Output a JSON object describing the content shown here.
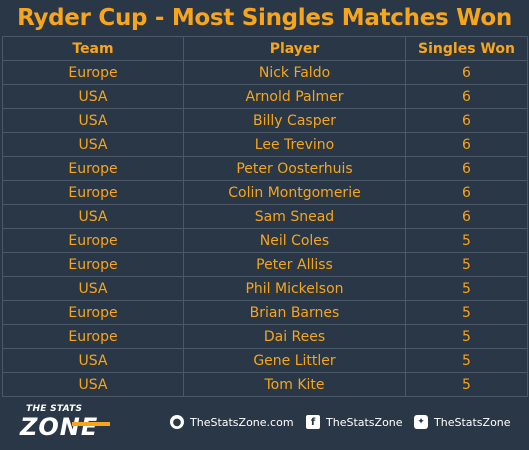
{
  "title": "Ryder Cup - Most Singles Matches Won",
  "table": {
    "columns": [
      "Team",
      "Player",
      "Singles Won"
    ],
    "rows": [
      [
        "Europe",
        "Nick Faldo",
        "6"
      ],
      [
        "USA",
        "Arnold Palmer",
        "6"
      ],
      [
        "USA",
        "Billy Casper",
        "6"
      ],
      [
        "USA",
        "Lee Trevino",
        "6"
      ],
      [
        "Europe",
        "Peter Oosterhuis",
        "6"
      ],
      [
        "Europe",
        "Colin Montgomerie",
        "6"
      ],
      [
        "USA",
        "Sam Snead",
        "6"
      ],
      [
        "Europe",
        "Neil Coles",
        "5"
      ],
      [
        "Europe",
        "Peter Alliss",
        "5"
      ],
      [
        "USA",
        "Phil Mickelson",
        "5"
      ],
      [
        "Europe",
        "Brian Barnes",
        "5"
      ],
      [
        "Europe",
        "Dai Rees",
        "5"
      ],
      [
        "USA",
        "Gene Littler",
        "5"
      ],
      [
        "USA",
        "Tom Kite",
        "5"
      ]
    ]
  },
  "footer": {
    "logo_top": "THE STATS",
    "logo_main": "ZONE",
    "website": "TheStatsZone.com",
    "facebook": "TheStatsZone",
    "twitter": "TheStatsZone"
  },
  "colors": {
    "background": "#2a3746",
    "accent": "#f7a51c",
    "grid": "#4a5868",
    "footer_text": "#ffffff"
  },
  "icons": {
    "website": "globe-icon",
    "facebook": "facebook-icon",
    "twitter": "twitter-icon"
  }
}
